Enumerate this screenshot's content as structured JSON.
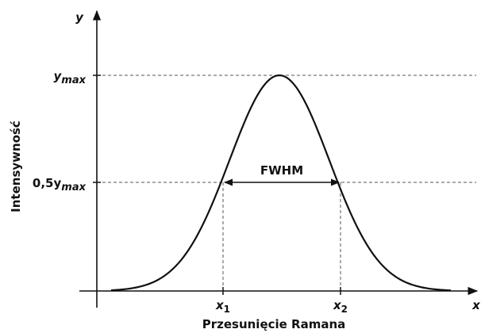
{
  "axes": {
    "y_label": "y",
    "x_label": "x",
    "y_title": "Intensywność",
    "x_title": "Przesunięcie Ramana"
  },
  "levels": [
    {
      "base": "y",
      "sub": "max"
    },
    {
      "base": "0,5y",
      "sub": "max"
    }
  ],
  "points": [
    {
      "base": "x",
      "sub": "1"
    },
    {
      "base": "x",
      "sub": "2"
    }
  ],
  "annotation": "FWHM"
}
